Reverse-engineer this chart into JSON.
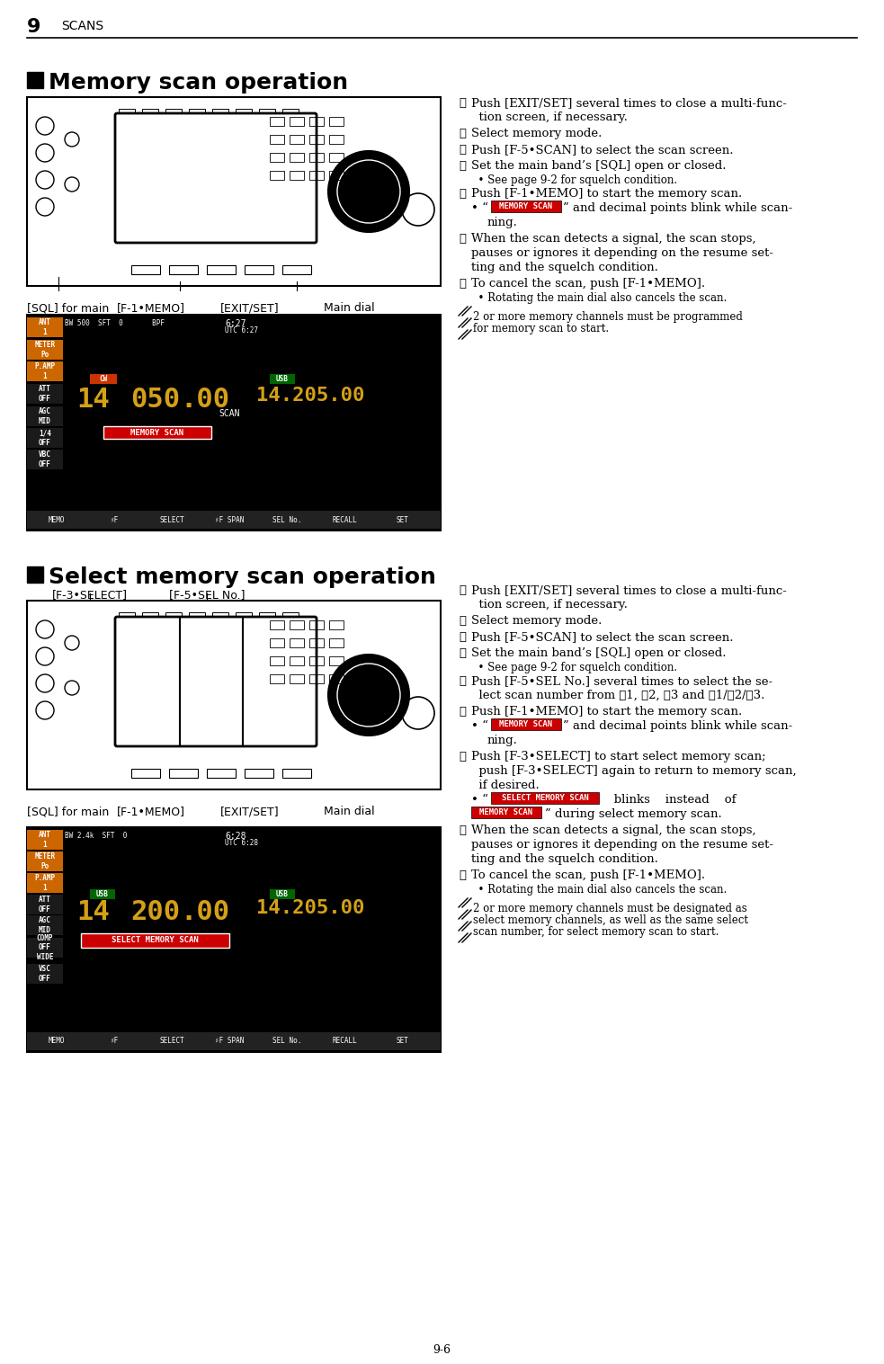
{
  "page_number": "9-6",
  "header_number": "9",
  "header_title": "SCANS",
  "section1_title": "Memory scan operation",
  "section2_title": "Select memory scan operation",
  "bg_color": "#ffffff",
  "text_color": "#000000",
  "section1_steps": [
    "①Push [EXIT/SET] several times to close a multi-func-\n   tion screen, if necessary.",
    "②Select memory mode.",
    "③Push [F-5•SCAN] to select the scan screen.",
    "④Set the main band’s [SQL] open or closed.\n   • See page 9-2 for squelch condition.",
    "⑤Push [F-1•MEMO] to start the memory scan.",
    "• “MEMORY SCAN” and decimal points blink while scan-\n   ning.",
    "⑥When the scan detects a signal, the scan stops,\n   pauses or ignores it depending on the resume set-\n   ting and the squelch condition.",
    "⑦To cancel the scan, push [F-1•MEMO].\n   • Rotating the main dial also cancels the scan."
  ],
  "section1_note": "2 or more memory channels must be programmed\nfor memory scan to start.",
  "section1_label_left": "[SQL] for main",
  "section1_label_center": "[F-1•MEMO]",
  "section1_label_right": "[EXIT/SET]",
  "section1_label_far_right": "Main dial",
  "section2_steps": [
    "①Push [EXIT/SET] several times to close a multi-func-\n   tion screen, if necessary.",
    "②Select memory mode.",
    "③Push [F-5•SCAN] to select the scan screen.",
    "④Set the main band’s [SQL] open or closed.\n   • See page 9-2 for squelch condition.",
    "⑤Push [F-5•SEL No.] several times to select the se-\n   lect scan number from ⋆1, ⋆2, ⋆3 and ⋆1/⋆2/⋆3.",
    "⑥Push [F-1•MEMO] to start the memory scan.",
    "• “MEMORY SCAN” and decimal points blink while scan-\n   ning.",
    "⑦Push [F-3•SELECT] to start select memory scan;\n   push [F-3•SELECT] again to return to memory scan,\n   if desired.",
    "• “SELECT MEMORY SCAN”    blinks    instead    of\n   “MEMORY SCAN” during select memory scan.",
    "⑧When the scan detects a signal, the scan stops,\n   pauses or ignores it depending on the resume set-\n   ting and the squelch condition.",
    "⑨To cancel the scan, push [F-1•MEMO].\n   • Rotating the main dial also cancels the scan."
  ],
  "section2_note": "2 or more memory channels must be designated as\nselect memory channels, as well as the same select\nscan number, for select memory scan to start.",
  "section2_label_top_left": "[F-3•SELECT]",
  "section2_label_top_center": "[F-5•SEL No.]",
  "section2_label_left": "[SQL] for main",
  "section2_label_center": "[F-1•MEMO]",
  "section2_label_right": "[EXIT/SET]",
  "section2_label_far_right": "Main dial"
}
